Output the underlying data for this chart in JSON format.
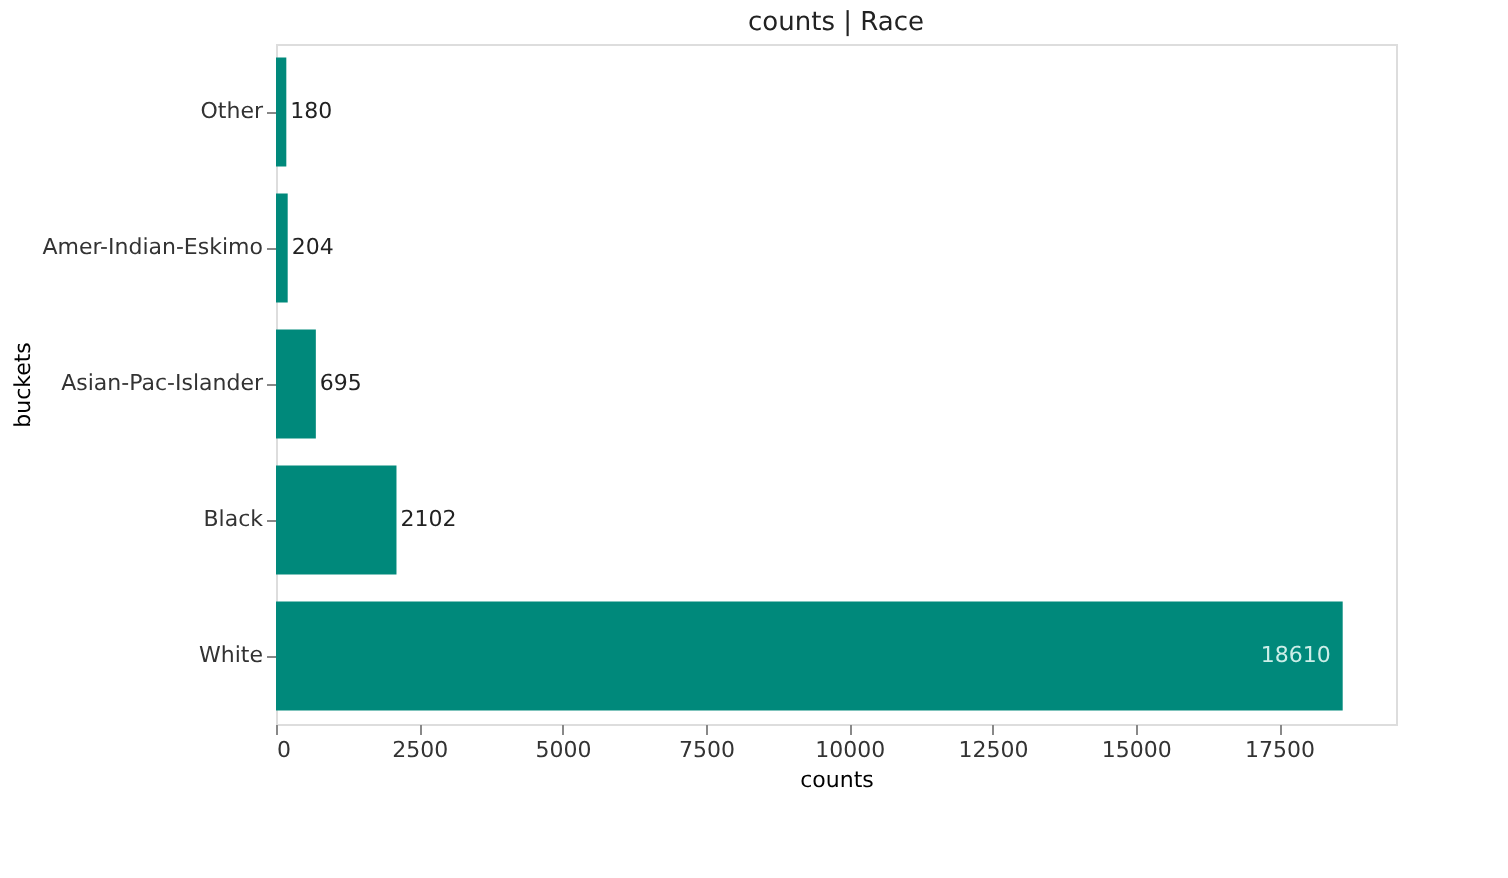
{
  "chart_data": {
    "type": "bar",
    "orientation": "horizontal",
    "title": "counts | Race",
    "xlabel": "counts",
    "ylabel": "buckets",
    "categories": [
      "Other",
      "Amer-Indian-Eskimo",
      "Asian-Pac-Islander",
      "Black",
      "White"
    ],
    "values": [
      180,
      204,
      695,
      2102,
      18610
    ],
    "color": "#00897b",
    "xlim": [
      0,
      19540
    ],
    "xticks": [
      0,
      2500,
      5000,
      7500,
      10000,
      12500,
      15000,
      17500
    ],
    "grid": false,
    "data_labels": true
  }
}
